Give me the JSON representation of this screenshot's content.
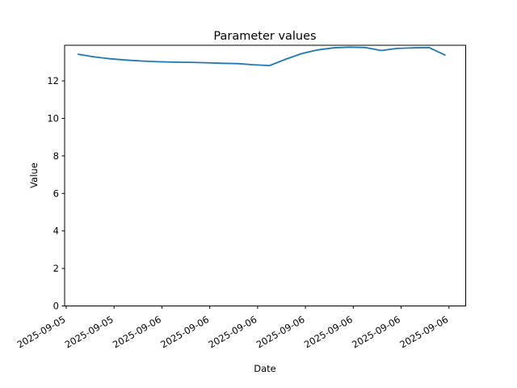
{
  "figure": {
    "background": "#ffffff",
    "frame_color": "#000000"
  },
  "chart_data": {
    "type": "line",
    "title": "Parameter values",
    "xlabel": "Date",
    "ylabel": "Value",
    "grid": false,
    "legend": "none",
    "line_color": "#1f77b4",
    "line_width": 1.8,
    "xlim": [
      -0.1,
      25.05
    ],
    "ylim": [
      0,
      13.9
    ],
    "yticks": [
      0,
      2,
      4,
      6,
      8,
      10,
      12
    ],
    "xticks_hours": [
      0,
      3,
      6,
      9,
      12,
      15,
      18,
      21,
      24
    ],
    "xtick_labels": [
      "2025-09-05",
      "2025-09-05",
      "2025-09-06",
      "2025-09-06",
      "2025-09-06",
      "2025-09-06",
      "2025-09-06",
      "2025-09-06",
      "2025-09-06"
    ],
    "series": [
      {
        "name": "Parameter",
        "x_hours": [
          0.75,
          1.75,
          2.75,
          3.75,
          4.75,
          5.75,
          6.75,
          7.75,
          8.75,
          9.75,
          10.75,
          11.75,
          12.75,
          13.75,
          14.75,
          15.75,
          16.75,
          17.75,
          18.75,
          19.75,
          20.75,
          21.75,
          22.75,
          23.75
        ],
        "values": [
          13.42,
          13.28,
          13.18,
          13.11,
          13.06,
          13.02,
          13.0,
          12.99,
          12.97,
          12.94,
          12.92,
          12.86,
          12.82,
          13.15,
          13.45,
          13.65,
          13.76,
          13.8,
          13.78,
          13.62,
          13.73,
          13.76,
          13.78,
          13.38
        ]
      }
    ]
  }
}
